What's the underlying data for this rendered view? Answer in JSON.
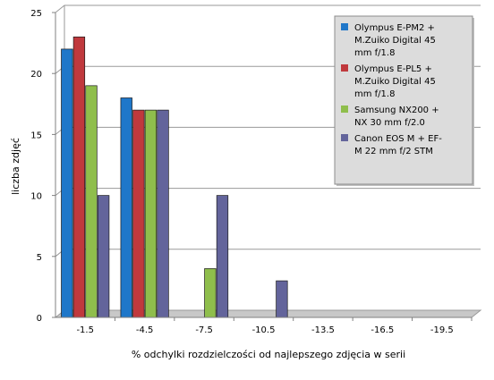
{
  "chart_data": {
    "type": "bar",
    "title": "",
    "xlabel": "% odchylki rozdzielczości od najlepszego zdjęcia w serii",
    "ylabel": "liczba zdjęć",
    "ylim": [
      0,
      25
    ],
    "yticks": [
      "0",
      "5",
      "10",
      "15",
      "20",
      "25"
    ],
    "grid": "horizontal",
    "legend_position": "top-right",
    "categories": [
      "-1.5",
      "-4.5",
      "-7.5",
      "-10.5",
      "-13.5",
      "-16.5",
      "-19.5"
    ],
    "series": [
      {
        "name": "Olympus E-PM2 + M.Zuiko Digital 45 mm f/1.8",
        "legend_lines": [
          "Olympus E-PM2 +",
          "M.Zuiko Digital 45",
          "mm f/1.8"
        ],
        "color": "#1f77c9",
        "values": [
          22,
          18,
          0,
          0,
          0,
          0,
          0
        ]
      },
      {
        "name": "Olympus E-PL5 + M.Zuiko Digital 45 mm f/1.8",
        "legend_lines": [
          "Olympus E-PL5 +",
          "M.Zuiko Digital 45",
          "mm f/1.8"
        ],
        "color": "#c0393d",
        "values": [
          23,
          17,
          0,
          0,
          0,
          0,
          0
        ]
      },
      {
        "name": "Samsung NX200 + NX 30 mm f/2.0",
        "legend_lines": [
          "Samsung NX200 +",
          "NX 30 mm f/2.0"
        ],
        "color": "#8fbe4c",
        "values": [
          19,
          17,
          4,
          0,
          0,
          0,
          0
        ]
      },
      {
        "name": "Canon EOS M + EF-M 22 mm f/2 STM",
        "legend_lines": [
          "Canon EOS M + EF-",
          "M 22 mm f/2 STM"
        ],
        "color": "#63649b",
        "values": [
          10,
          17,
          10,
          3,
          0,
          0,
          0
        ]
      }
    ]
  }
}
